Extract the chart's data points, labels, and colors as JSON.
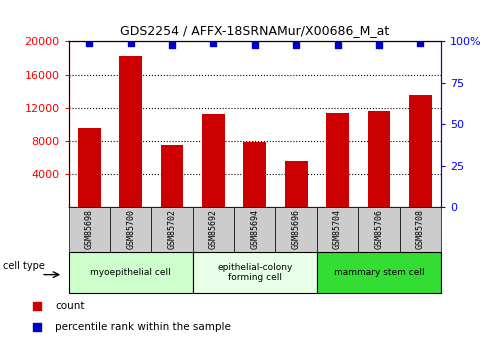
{
  "title": "GDS2254 / AFFX-18SRNAMur/X00686_M_at",
  "samples": [
    "GSM85698",
    "GSM85700",
    "GSM85702",
    "GSM85692",
    "GSM85694",
    "GSM85696",
    "GSM85704",
    "GSM85706",
    "GSM85708"
  ],
  "counts": [
    9500,
    18200,
    7500,
    11200,
    7900,
    5600,
    11300,
    11600,
    13500
  ],
  "percentile_ranks": [
    99,
    99,
    98,
    99,
    98,
    98,
    98,
    98,
    99
  ],
  "ylim_left": [
    0,
    20000
  ],
  "ylim_right": [
    0,
    100
  ],
  "yticks_left": [
    4000,
    8000,
    12000,
    16000,
    20000
  ],
  "yticks_right": [
    0,
    25,
    50,
    75,
    100
  ],
  "ytick_labels_right": [
    "0",
    "25",
    "50",
    "75",
    "100%"
  ],
  "bar_color": "#cc0000",
  "dot_color": "#0000cc",
  "cell_type_groups": [
    {
      "label": "myoepithelial cell",
      "start": 0,
      "end": 3,
      "color": "#ccffcc"
    },
    {
      "label": "epithelial-colony\nforming cell",
      "start": 3,
      "end": 6,
      "color": "#e8ffe8"
    },
    {
      "label": "mammary stem cell",
      "start": 6,
      "end": 9,
      "color": "#33dd33"
    }
  ],
  "cell_type_label": "cell type",
  "legend_count_label": "count",
  "legend_pct_label": "percentile rank within the sample",
  "bar_width": 0.55,
  "sample_bg_color": "#cccccc",
  "fig_width": 4.9,
  "fig_height": 3.45,
  "dpi": 100
}
